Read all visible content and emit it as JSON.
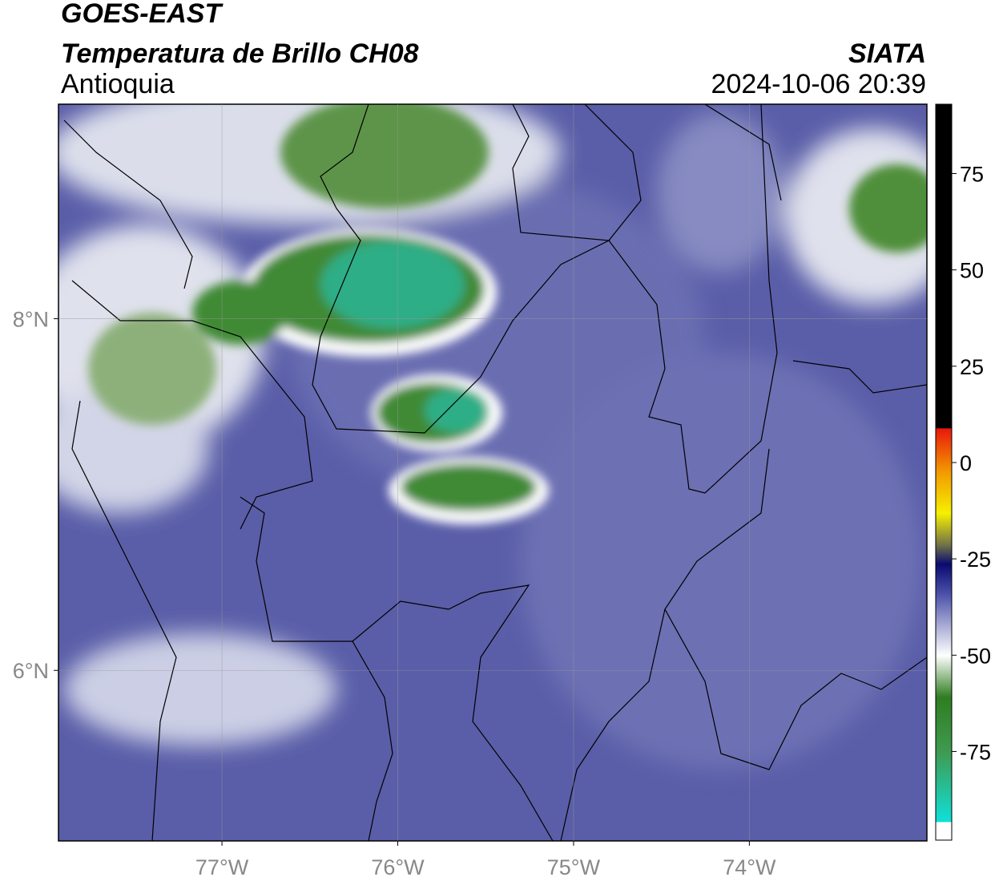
{
  "header": {
    "line1": "GOES-EAST",
    "line2": "Temperatura de Brillo CH08",
    "region": "Antioquia",
    "source": "SIATA",
    "datetime": "2024-10-06 20:39"
  },
  "map": {
    "xlim": [
      -77.93,
      -72.99
    ],
    "ylim": [
      5.03,
      9.22
    ],
    "xticks": [
      {
        "value": -77,
        "label": "77°W"
      },
      {
        "value": -76,
        "label": "76°W"
      },
      {
        "value": -75,
        "label": "75°W"
      },
      {
        "value": -74,
        "label": "74°W"
      }
    ],
    "yticks": [
      {
        "value": 8,
        "label": "8°N"
      },
      {
        "value": 6,
        "label": "6°N"
      }
    ],
    "grid": true
  },
  "colorbar": {
    "lim": [
      -98,
      93
    ],
    "ticks": [
      75,
      50,
      25,
      0,
      -25,
      -50,
      -75
    ]
  }
}
